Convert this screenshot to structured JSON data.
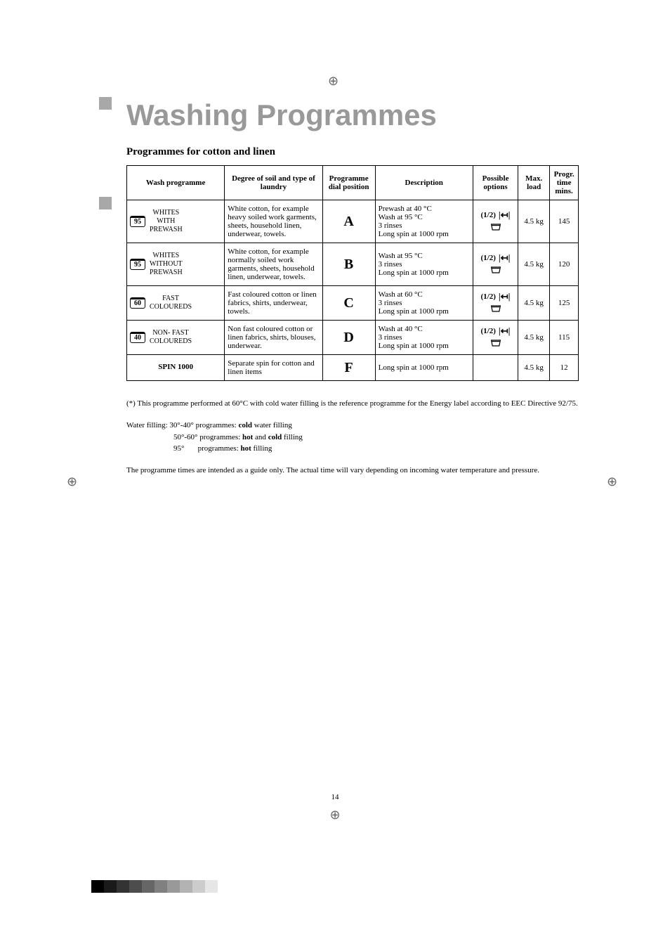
{
  "title": "Washing Programmes",
  "subtitle": "Programmes for cotton and linen",
  "headers": {
    "wash_programme": "Wash programme",
    "degree_soil": "Degree of soil and type of laundry",
    "dial_position": "Programme dial position",
    "description": "Description",
    "possible_options": "Possible options",
    "max_load": "Max. load",
    "progr_time": "Progr. time mins."
  },
  "rows": [
    {
      "temp": "95",
      "temp_line": true,
      "name": "WHITES\nWITH\nPREWASH",
      "soil": "White cotton, for example heavy soiled work garments, sheets, household linen, underwear, towels.",
      "dial": "A",
      "desc": "Prewash at 40 °C\nWash at 95 °C\n3 rinses\nLong spin at 1000 rpm",
      "has_options": true,
      "load": "4.5 kg",
      "time": "145"
    },
    {
      "temp": "95",
      "temp_line": true,
      "name": "WHITES\nWITHOUT\nPREWASH",
      "soil": "White cotton, for example normally soiled work garments, sheets, household linen, underwear, towels.",
      "dial": "B",
      "desc": "Wash at 95 °C\n3 rinses\nLong spin at 1000 rpm",
      "has_options": true,
      "load": "4.5 kg",
      "time": "120"
    },
    {
      "temp": "60",
      "temp_line": true,
      "name": "FAST\nCOLOUREDS",
      "soil": "Fast coloured cotton or linen fabrics, shirts, underwear, towels.",
      "dial": "C",
      "desc": "Wash at 60 °C\n3 rinses\nLong spin at 1000 rpm",
      "has_options": true,
      "load": "4.5 kg",
      "time": "125"
    },
    {
      "temp": "40",
      "temp_line": true,
      "name": "NON- FAST\nCOLOUREDS",
      "soil": "Non fast coloured cotton or linen fabrics, shirts, blouses, underwear.",
      "dial": "D",
      "desc": "Wash at 40 °C\n3 rinses\nLong spin at 1000 rpm",
      "has_options": true,
      "load": "4.5 kg",
      "time": "115"
    },
    {
      "temp": "",
      "temp_line": false,
      "name": "SPIN 1000",
      "soil": "Separate spin for cotton and linen items",
      "dial": "F",
      "desc": "Long spin at 1000 rpm",
      "has_options": false,
      "load": "4.5 kg",
      "time": "12"
    }
  ],
  "footnote": "(*) This programme performed at 60°C with cold water filling is the reference programme for the Energy label according to EEC Directive 92/75.",
  "water_filling": {
    "intro": "Water filling: 30°-40° programmes:",
    "intro_suffix": "water filling",
    "cold": "cold",
    "line2_prefix": "50°-60° programmes:",
    "line2_bold1": "hot",
    "line2_mid": "and",
    "line2_bold2": "cold",
    "line2_suffix": "filling",
    "line3_prefix": "95°       programmes:",
    "line3_bold": "hot",
    "line3_suffix": "filling"
  },
  "note": "The programme times are intended as a guide only. The actual time will vary depending on incoming water temperature and pressure.",
  "page_number": "14",
  "color_strip": [
    "#000000",
    "#1a1a1a",
    "#333333",
    "#4d4d4d",
    "#666666",
    "#808080",
    "#999999",
    "#b3b3b3",
    "#cccccc",
    "#e6e6e6"
  ]
}
